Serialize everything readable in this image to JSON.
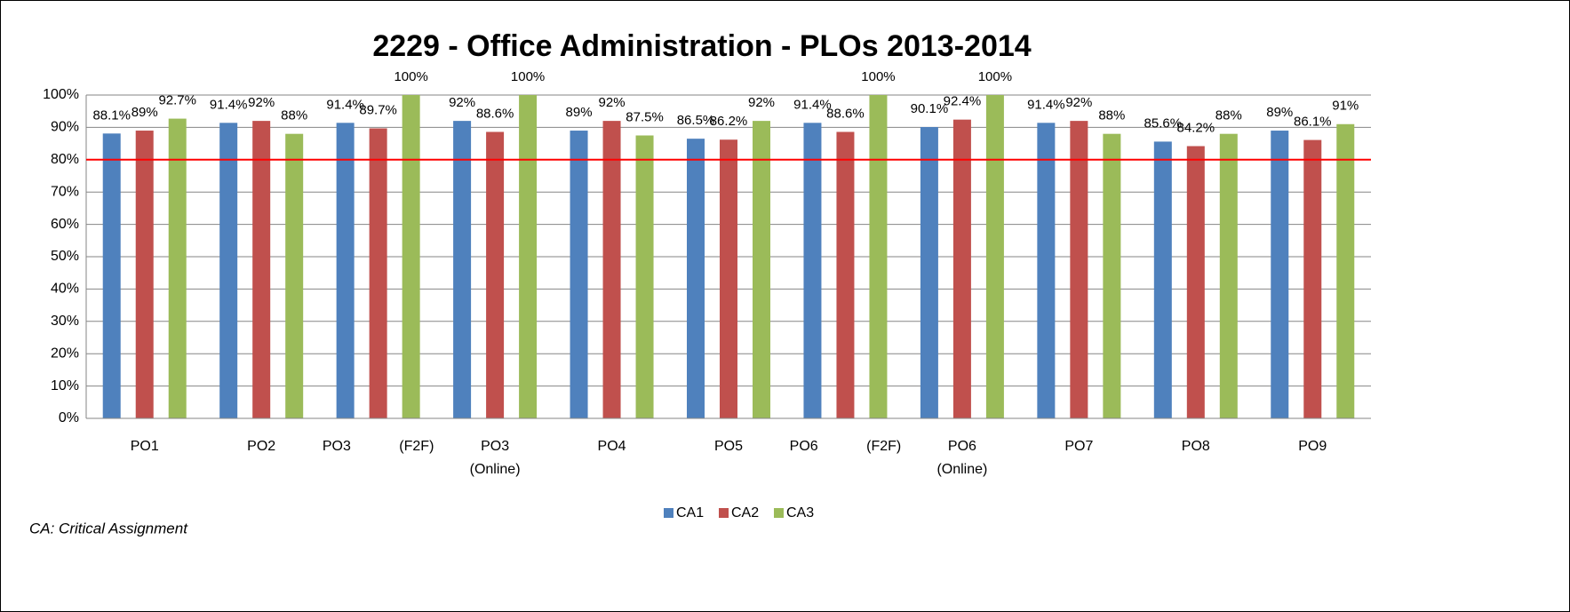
{
  "chart_data": {
    "type": "bar",
    "title": "2229 - Office Administration - PLOs 2013-2014",
    "categories": [
      "PO1",
      "PO2",
      "PO3 (F2F)",
      "PO3 (Online)",
      "PO4",
      "PO5",
      "PO6 (F2F)",
      "PO6 (Online)",
      "PO7",
      "PO8",
      "PO9"
    ],
    "series": [
      {
        "name": "CA1",
        "color": "#4f81bd",
        "values": [
          88.1,
          91.4,
          91.4,
          92,
          89,
          86.5,
          91.4,
          90.1,
          91.4,
          85.6,
          89
        ],
        "value_labels": [
          "88.1%",
          "91.4%",
          "91.4%",
          "92%",
          "89%",
          "86.5%",
          "91.4%",
          "90.1%",
          "91.4%",
          "85.6%",
          "89%"
        ]
      },
      {
        "name": "CA2",
        "color": "#c0504d",
        "values": [
          89,
          92,
          89.7,
          88.6,
          92,
          86.2,
          88.6,
          92.4,
          92,
          84.2,
          86.1
        ],
        "value_labels": [
          "89%",
          "92%",
          "89.7%",
          "88.6%",
          "92%",
          "86.2%",
          "88.6%",
          "92.4%",
          "92%",
          "84.2%",
          "86.1%"
        ]
      },
      {
        "name": "CA3",
        "color": "#9bbb59",
        "values": [
          92.7,
          88,
          100,
          100,
          87.5,
          92,
          100,
          100,
          88,
          88,
          91
        ],
        "value_labels": [
          "92.7%",
          "88%",
          "100%",
          "100%",
          "87.5%",
          "92%",
          "100%",
          "100%",
          "88%",
          "88%",
          "91%"
        ]
      }
    ],
    "ylim": [
      0,
      100
    ],
    "yticks": [
      {
        "value": 0,
        "label": "0%"
      },
      {
        "value": 10,
        "label": "10%"
      },
      {
        "value": 20,
        "label": "20%"
      },
      {
        "value": 30,
        "label": "30%"
      },
      {
        "value": 40,
        "label": "40%"
      },
      {
        "value": 50,
        "label": "50%"
      },
      {
        "value": 60,
        "label": "60%"
      },
      {
        "value": 70,
        "label": "70%"
      },
      {
        "value": 80,
        "label": "80%"
      },
      {
        "value": 90,
        "label": "90%"
      },
      {
        "value": 100,
        "label": "100%"
      }
    ],
    "grid": true,
    "reference_line": {
      "value": 80,
      "color": "#ff0000"
    },
    "legend": "bottom",
    "footnote": "CA: Critical Assignment"
  }
}
